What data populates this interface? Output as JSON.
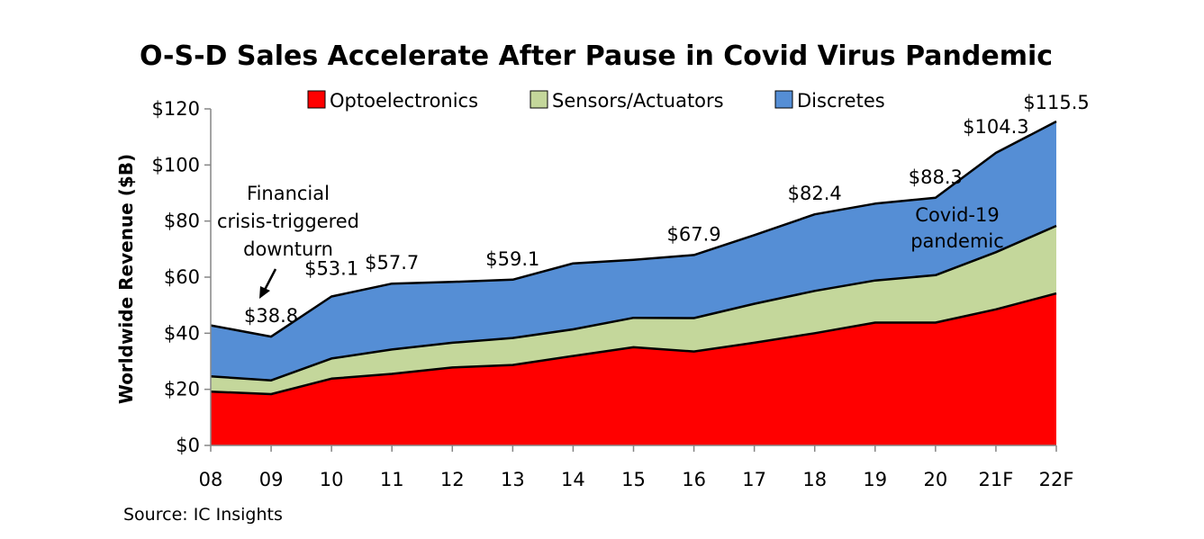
{
  "chart_data": {
    "type": "area",
    "stacked": true,
    "title": "O-S-D Sales Accelerate After Pause in Covid Virus Pandemic",
    "ylabel": "Worldwide Revenue ($B)",
    "xlabel": "",
    "categories": [
      "08",
      "09",
      "10",
      "11",
      "12",
      "13",
      "14",
      "15",
      "16",
      "17",
      "18",
      "19",
      "20",
      "21F",
      "22F"
    ],
    "ylim": [
      0,
      120
    ],
    "yticks": [
      0,
      20,
      40,
      60,
      80,
      100,
      120
    ],
    "ytick_labels": [
      "$0",
      "$20",
      "$40",
      "$60",
      "$80",
      "$100",
      "$120"
    ],
    "grid": false,
    "legend_position": "top",
    "series": [
      {
        "name": "Optoelectronics",
        "color": "#ff0000",
        "values": [
          19.2,
          18.3,
          23.8,
          25.5,
          27.8,
          28.7,
          31.9,
          35.0,
          33.5,
          36.6,
          40.0,
          43.8,
          43.8,
          48.5,
          54.2
        ]
      },
      {
        "name": "Sensors/Actuators",
        "color": "#c4d79b",
        "values": [
          5.4,
          4.9,
          7.2,
          8.7,
          8.8,
          9.6,
          9.5,
          10.5,
          11.9,
          13.9,
          15.1,
          15.0,
          16.9,
          20.4,
          24.1
        ]
      },
      {
        "name": "Discretes",
        "color": "#558ed5",
        "values": [
          18.2,
          15.6,
          22.1,
          23.5,
          21.7,
          20.8,
          23.5,
          20.7,
          22.5,
          24.5,
          27.3,
          27.4,
          27.6,
          35.4,
          37.2
        ]
      }
    ],
    "data_labels": [
      {
        "x": "09",
        "text": "$38.8"
      },
      {
        "x": "10",
        "text": "$53.1"
      },
      {
        "x": "11",
        "text": "$57.7"
      },
      {
        "x": "13",
        "text": "$59.1"
      },
      {
        "x": "16",
        "text": "$67.9"
      },
      {
        "x": "18",
        "text": "$82.4"
      },
      {
        "x": "20",
        "text": "$88.3"
      },
      {
        "x": "21F",
        "text": "$104.3"
      },
      {
        "x": "22F",
        "text": "$115.5"
      }
    ],
    "annotations": {
      "financial": [
        "Financial",
        "crisis-triggered",
        "downturn"
      ],
      "covid": [
        "Covid-19",
        "pandemic"
      ]
    },
    "source": "Source: IC Insights"
  }
}
